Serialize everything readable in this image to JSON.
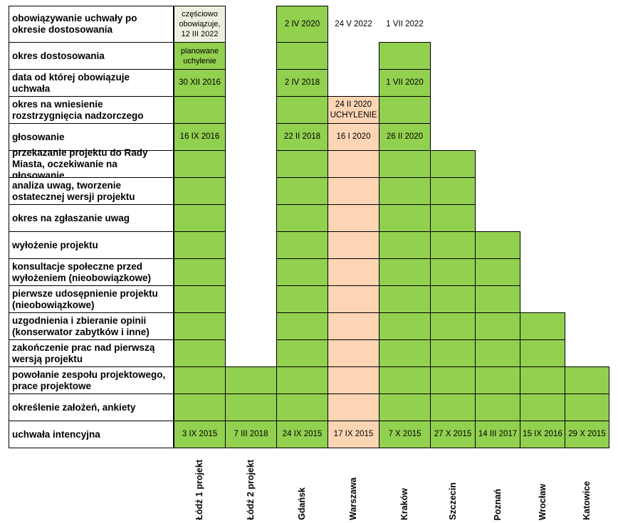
{
  "colors": {
    "green": "#92d050",
    "peach": "#fcd5b4",
    "pale": "#ebf1de",
    "border": "#000000"
  },
  "stages": [
    "obowiązywanie uchwały po okresie dostosowania",
    "okres dostosowania",
    "data od której obowiązuje uchwała",
    "okres na wniesienie rozstrzygnięcia nadzorczego",
    "głosowanie",
    "przekazanie projektu do Rady Miasta, oczekiwanie na głosowanie",
    "analiza uwag, tworzenie ostatecznej wersji projektu",
    "okres na zgłaszanie uwag",
    "wyłożenie projektu",
    "konsultacje społeczne przed wyłożeniem (nieobowiązkowe)",
    "pierwsze udosępnienie projektu (nieobowiązkowe)",
    "uzgodnienia i zbieranie opinii (konserwator zabytków i inne)",
    "zakończenie prac nad pierwszą wersją projektu",
    "powołanie zespołu projektowego, prace projektowe",
    "określenie założeń, ankiety",
    "uchwała intencyjna"
  ],
  "chart_data": {
    "type": "table",
    "cities": [
      {
        "name": "Łódź 1 projekt",
        "cells": [
          {
            "stage": 0,
            "fill": "pale",
            "text": "częściowo obowiązuje, 12 III 2022"
          },
          {
            "stage": 1,
            "fill": "green",
            "text": "planowane uchylenie"
          },
          {
            "stage": 2,
            "fill": "green",
            "text": "30 XII 2016"
          },
          {
            "stage": 3,
            "fill": "green",
            "text": ""
          },
          {
            "stage": 4,
            "fill": "green",
            "text": "16 IX 2016"
          },
          {
            "stage": 5,
            "fill": "green",
            "text": ""
          },
          {
            "stage": 6,
            "fill": "green",
            "text": ""
          },
          {
            "stage": 7,
            "fill": "green",
            "text": ""
          },
          {
            "stage": 8,
            "fill": "green",
            "text": ""
          },
          {
            "stage": 9,
            "fill": "green",
            "text": ""
          },
          {
            "stage": 10,
            "fill": "green",
            "text": ""
          },
          {
            "stage": 11,
            "fill": "green",
            "text": ""
          },
          {
            "stage": 12,
            "fill": "green",
            "text": ""
          },
          {
            "stage": 13,
            "fill": "green",
            "text": ""
          },
          {
            "stage": 14,
            "fill": "green",
            "text": ""
          },
          {
            "stage": 15,
            "fill": "green",
            "text": "3 IX 2015"
          }
        ]
      },
      {
        "name": "Łódź 2 projekt",
        "cells": [
          {
            "stage": 13,
            "fill": "green",
            "text": ""
          },
          {
            "stage": 14,
            "fill": "green",
            "text": ""
          },
          {
            "stage": 15,
            "fill": "green",
            "text": "7 III 2018"
          }
        ]
      },
      {
        "name": "Gdańsk",
        "cells": [
          {
            "stage": 0,
            "fill": "green",
            "text": "2 IV 2020"
          },
          {
            "stage": 1,
            "fill": "green",
            "text": ""
          },
          {
            "stage": 2,
            "fill": "green",
            "text": "2 IV 2018"
          },
          {
            "stage": 3,
            "fill": "green",
            "text": ""
          },
          {
            "stage": 4,
            "fill": "green",
            "text": "22 II 2018"
          },
          {
            "stage": 5,
            "fill": "green",
            "text": ""
          },
          {
            "stage": 6,
            "fill": "green",
            "text": ""
          },
          {
            "stage": 7,
            "fill": "green",
            "text": ""
          },
          {
            "stage": 8,
            "fill": "green",
            "text": ""
          },
          {
            "stage": 9,
            "fill": "green",
            "text": ""
          },
          {
            "stage": 10,
            "fill": "green",
            "text": ""
          },
          {
            "stage": 11,
            "fill": "green",
            "text": ""
          },
          {
            "stage": 12,
            "fill": "green",
            "text": ""
          },
          {
            "stage": 13,
            "fill": "green",
            "text": ""
          },
          {
            "stage": 14,
            "fill": "green",
            "text": ""
          },
          {
            "stage": 15,
            "fill": "green",
            "text": "24 IX  2015"
          }
        ]
      },
      {
        "name": "Warszawa",
        "cells": [
          {
            "stage": 0,
            "fill": "none",
            "text": "24 V 2022"
          },
          {
            "stage": 3,
            "fill": "peach",
            "text": "24 II 2020 UCHYLENIE"
          },
          {
            "stage": 4,
            "fill": "peach",
            "text": "16 I 2020"
          },
          {
            "stage": 5,
            "fill": "peach",
            "text": ""
          },
          {
            "stage": 6,
            "fill": "peach",
            "text": ""
          },
          {
            "stage": 7,
            "fill": "peach",
            "text": ""
          },
          {
            "stage": 8,
            "fill": "peach",
            "text": ""
          },
          {
            "stage": 9,
            "fill": "peach",
            "text": ""
          },
          {
            "stage": 10,
            "fill": "peach",
            "text": ""
          },
          {
            "stage": 11,
            "fill": "peach",
            "text": ""
          },
          {
            "stage": 12,
            "fill": "peach",
            "text": ""
          },
          {
            "stage": 13,
            "fill": "peach",
            "text": ""
          },
          {
            "stage": 14,
            "fill": "peach",
            "text": ""
          },
          {
            "stage": 15,
            "fill": "peach",
            "text": "17 IX 2015"
          }
        ]
      },
      {
        "name": "Kraków",
        "cells": [
          {
            "stage": 0,
            "fill": "none",
            "text": "1 VII 2022"
          },
          {
            "stage": 1,
            "fill": "green",
            "text": ""
          },
          {
            "stage": 2,
            "fill": "green",
            "text": "1 VII 2020"
          },
          {
            "stage": 3,
            "fill": "green",
            "text": ""
          },
          {
            "stage": 4,
            "fill": "green",
            "text": "26 II 2020"
          },
          {
            "stage": 5,
            "fill": "green",
            "text": ""
          },
          {
            "stage": 6,
            "fill": "green",
            "text": ""
          },
          {
            "stage": 7,
            "fill": "green",
            "text": ""
          },
          {
            "stage": 8,
            "fill": "green",
            "text": ""
          },
          {
            "stage": 9,
            "fill": "green",
            "text": ""
          },
          {
            "stage": 10,
            "fill": "green",
            "text": ""
          },
          {
            "stage": 11,
            "fill": "green",
            "text": ""
          },
          {
            "stage": 12,
            "fill": "green",
            "text": ""
          },
          {
            "stage": 13,
            "fill": "green",
            "text": ""
          },
          {
            "stage": 14,
            "fill": "green",
            "text": ""
          },
          {
            "stage": 15,
            "fill": "green",
            "text": "7 X 2015"
          }
        ]
      },
      {
        "name": "Szczecin",
        "cells": [
          {
            "stage": 5,
            "fill": "green",
            "text": ""
          },
          {
            "stage": 6,
            "fill": "green",
            "text": ""
          },
          {
            "stage": 7,
            "fill": "green",
            "text": ""
          },
          {
            "stage": 8,
            "fill": "green",
            "text": ""
          },
          {
            "stage": 9,
            "fill": "green",
            "text": ""
          },
          {
            "stage": 10,
            "fill": "green",
            "text": ""
          },
          {
            "stage": 11,
            "fill": "green",
            "text": ""
          },
          {
            "stage": 12,
            "fill": "green",
            "text": ""
          },
          {
            "stage": 13,
            "fill": "green",
            "text": ""
          },
          {
            "stage": 14,
            "fill": "green",
            "text": ""
          },
          {
            "stage": 15,
            "fill": "green",
            "text": "27 X 2015"
          }
        ]
      },
      {
        "name": "Poznań",
        "cells": [
          {
            "stage": 8,
            "fill": "green",
            "text": ""
          },
          {
            "stage": 9,
            "fill": "green",
            "text": ""
          },
          {
            "stage": 10,
            "fill": "green",
            "text": ""
          },
          {
            "stage": 11,
            "fill": "green",
            "text": ""
          },
          {
            "stage": 12,
            "fill": "green",
            "text": ""
          },
          {
            "stage": 13,
            "fill": "green",
            "text": ""
          },
          {
            "stage": 14,
            "fill": "green",
            "text": ""
          },
          {
            "stage": 15,
            "fill": "green",
            "text": "14 III 2017"
          }
        ]
      },
      {
        "name": "Wrocław",
        "cells": [
          {
            "stage": 11,
            "fill": "green",
            "text": ""
          },
          {
            "stage": 12,
            "fill": "green",
            "text": ""
          },
          {
            "stage": 13,
            "fill": "green",
            "text": ""
          },
          {
            "stage": 14,
            "fill": "green",
            "text": ""
          },
          {
            "stage": 15,
            "fill": "green",
            "text": "15 IX 2016"
          }
        ]
      },
      {
        "name": "Katowice",
        "cells": [
          {
            "stage": 13,
            "fill": "green",
            "text": ""
          },
          {
            "stage": 14,
            "fill": "green",
            "text": ""
          },
          {
            "stage": 15,
            "fill": "green",
            "text": "29 X 2015"
          }
        ]
      }
    ]
  }
}
